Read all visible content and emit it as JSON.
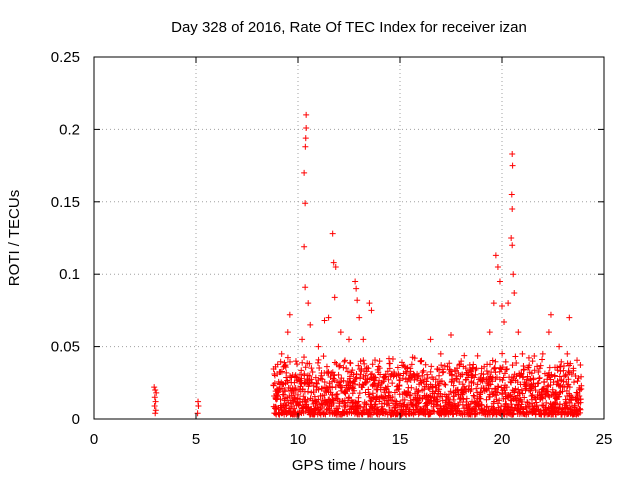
{
  "chart_data": {
    "type": "scatter",
    "title": "Day 328 of 2016, Rate Of TEC Index for receiver izan",
    "xlabel": "GPS time / hours",
    "ylabel": "ROTI / TECUs",
    "xlim": [
      0,
      25
    ],
    "ylim": [
      0,
      0.25
    ],
    "grid": true,
    "marker": "plus",
    "color": "#ff0000",
    "x_ticks": [
      0,
      5,
      10,
      15,
      20,
      25
    ],
    "x_tick_labels": [
      "0",
      "5",
      "10",
      "15",
      "20",
      "25"
    ],
    "y_ticks": [
      0,
      0.05,
      0.1,
      0.15,
      0.2,
      0.25
    ],
    "y_tick_labels": [
      "0",
      "0.05",
      "0.1",
      "0.15",
      "0.2",
      "0.25"
    ],
    "series": [
      {
        "name": "ROTI",
        "points": [
          [
            2.95,
            0.022
          ],
          [
            3.0,
            0.02
          ],
          [
            3.05,
            0.018
          ],
          [
            2.98,
            0.015
          ],
          [
            3.02,
            0.012
          ],
          [
            2.97,
            0.009
          ],
          [
            3.03,
            0.006
          ],
          [
            3.0,
            0.004
          ],
          [
            5.1,
            0.012
          ],
          [
            5.12,
            0.009
          ],
          [
            5.08,
            0.004
          ],
          [
            8.9,
            0.036
          ],
          [
            9.2,
            0.045
          ],
          [
            9.5,
            0.06
          ],
          [
            9.6,
            0.072
          ],
          [
            9.9,
            0.04
          ],
          [
            10.2,
            0.055
          ],
          [
            10.3,
            0.17
          ],
          [
            10.35,
            0.149
          ],
          [
            10.3,
            0.119
          ],
          [
            10.35,
            0.091
          ],
          [
            10.4,
            0.21
          ],
          [
            10.4,
            0.201
          ],
          [
            10.38,
            0.194
          ],
          [
            10.36,
            0.188
          ],
          [
            10.5,
            0.08
          ],
          [
            10.6,
            0.065
          ],
          [
            11.0,
            0.05
          ],
          [
            11.3,
            0.068
          ],
          [
            11.5,
            0.07
          ],
          [
            11.7,
            0.128
          ],
          [
            11.75,
            0.108
          ],
          [
            11.85,
            0.105
          ],
          [
            11.8,
            0.084
          ],
          [
            12.1,
            0.06
          ],
          [
            12.5,
            0.055
          ],
          [
            12.8,
            0.095
          ],
          [
            12.85,
            0.09
          ],
          [
            12.9,
            0.082
          ],
          [
            13.0,
            0.07
          ],
          [
            13.2,
            0.055
          ],
          [
            13.5,
            0.08
          ],
          [
            13.6,
            0.075
          ],
          [
            14.0,
            0.04
          ],
          [
            14.5,
            0.035
          ],
          [
            15.0,
            0.03
          ],
          [
            15.5,
            0.035
          ],
          [
            16.0,
            0.04
          ],
          [
            16.5,
            0.055
          ],
          [
            17.0,
            0.045
          ],
          [
            17.5,
            0.058
          ],
          [
            18.0,
            0.04
          ],
          [
            18.5,
            0.03
          ],
          [
            19.0,
            0.035
          ],
          [
            19.4,
            0.06
          ],
          [
            19.6,
            0.08
          ],
          [
            19.7,
            0.113
          ],
          [
            19.8,
            0.105
          ],
          [
            19.9,
            0.095
          ],
          [
            20.0,
            0.078
          ],
          [
            20.1,
            0.067
          ],
          [
            20.3,
            0.08
          ],
          [
            20.5,
            0.183
          ],
          [
            20.52,
            0.175
          ],
          [
            20.48,
            0.155
          ],
          [
            20.5,
            0.145
          ],
          [
            20.45,
            0.125
          ],
          [
            20.5,
            0.12
          ],
          [
            20.55,
            0.1
          ],
          [
            20.6,
            0.087
          ],
          [
            20.8,
            0.06
          ],
          [
            21.0,
            0.045
          ],
          [
            21.5,
            0.04
          ],
          [
            22.0,
            0.045
          ],
          [
            22.3,
            0.06
          ],
          [
            22.4,
            0.072
          ],
          [
            22.8,
            0.05
          ],
          [
            23.2,
            0.045
          ],
          [
            23.3,
            0.07
          ],
          [
            23.5,
            0.035
          ],
          [
            23.8,
            0.02
          ]
        ],
        "dense_band": {
          "x_start": 8.8,
          "x_end": 23.9,
          "y_min": 0.003,
          "y_max_typical": 0.03
        }
      }
    ]
  }
}
